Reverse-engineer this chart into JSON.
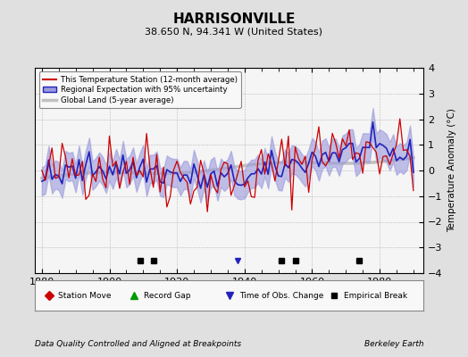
{
  "title": "HARRISONVILLE",
  "subtitle": "38.650 N, 94.341 W (United States)",
  "footer_left": "Data Quality Controlled and Aligned at Breakpoints",
  "footer_right": "Berkeley Earth",
  "ylabel": "Temperature Anomaly (°C)",
  "xlim": [
    1878,
    1993
  ],
  "ylim": [
    -4,
    4
  ],
  "yticks": [
    -4,
    -3,
    -2,
    -1,
    0,
    1,
    2,
    3,
    4
  ],
  "xticks": [
    1880,
    1900,
    1920,
    1940,
    1960,
    1980
  ],
  "bg_color": "#e0e0e0",
  "plot_bg_color": "#f5f5f5",
  "station_line_color": "#cc0000",
  "regional_line_color": "#2222bb",
  "regional_fill_color": "#9999dd",
  "global_line_color": "#c0c0c0",
  "empirical_break_years": [
    1909,
    1913,
    1951,
    1955,
    1974
  ],
  "station_move_years": [],
  "record_gap_years": [],
  "tobs_change_years": [
    1938
  ],
  "seed": 42
}
